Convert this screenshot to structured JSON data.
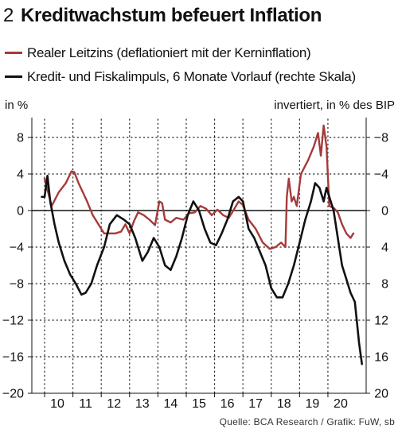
{
  "header": {
    "number": "2",
    "title": "Kreditwachstum befeuert Inflation"
  },
  "source": "Quelle: BCA Research / Grafik: FuW, sb",
  "chart_data": {
    "type": "line",
    "left_axis_label": "in %",
    "right_axis_label": "invertiert, in % des BIP",
    "left_ticks": [
      "8",
      "4",
      "0",
      "−4",
      "−8",
      "−12",
      "−16",
      "−20"
    ],
    "right_ticks": [
      "−8",
      "−4",
      "0",
      "4",
      "8",
      "12",
      "16",
      "20"
    ],
    "left_ylim": [
      -20,
      10
    ],
    "right_ylim_inverted": [
      -10,
      20
    ],
    "x_ticks": [
      "10",
      "11",
      "12",
      "13",
      "14",
      "15",
      "16",
      "17",
      "18",
      "19",
      "20"
    ],
    "xlim": [
      2009.55,
      2021.35
    ],
    "grid": "dotted",
    "colors": {
      "real_rate": "#a63a3a",
      "impulse": "#111111",
      "zero_line": "#111111"
    },
    "series": [
      {
        "name": "Realer Leitzins (deflationiert mit der Kerninflation)",
        "axis": "left",
        "color": "#a63a3a",
        "x": [
          2010.0,
          2010.25,
          2010.5,
          2010.75,
          2010.95,
          2011.05,
          2011.2,
          2011.35,
          2011.5,
          2011.7,
          2011.9,
          2012.1,
          2012.3,
          2012.5,
          2012.7,
          2012.85,
          2013.0,
          2013.15,
          2013.3,
          2013.5,
          2013.7,
          2013.9,
          2014.05,
          2014.15,
          2014.25,
          2014.45,
          2014.65,
          2014.9,
          2015.1,
          2015.3,
          2015.5,
          2015.7,
          2015.9,
          2016.1,
          2016.3,
          2016.5,
          2016.7,
          2016.85,
          2017.0,
          2017.2,
          2017.45,
          2017.7,
          2017.95,
          2018.15,
          2018.35,
          2018.5,
          2018.55,
          2018.62,
          2018.72,
          2018.8,
          2018.9,
          2019.05,
          2019.3,
          2019.5,
          2019.65,
          2019.75,
          2019.85,
          2019.95,
          2020.05,
          2020.2,
          2020.35,
          2020.5,
          2020.65,
          2020.8,
          2020.9
        ],
        "values": [
          3.5,
          0.5,
          2.0,
          3.0,
          4.3,
          4.2,
          3.0,
          2.0,
          1.0,
          -0.5,
          -1.5,
          -2.5,
          -2.5,
          -2.5,
          -2.3,
          -1.5,
          -2.5,
          -1.2,
          -0.2,
          -0.5,
          -1.0,
          -1.6,
          1.0,
          0.8,
          -1.0,
          -1.3,
          -0.8,
          -1.0,
          -0.3,
          -0.2,
          0.5,
          0.2,
          -0.5,
          0.1,
          -0.5,
          -0.8,
          0.2,
          1.0,
          0.6,
          -1.0,
          -2.0,
          -3.5,
          -4.2,
          -4.0,
          -3.5,
          -4.0,
          1.5,
          3.5,
          1.0,
          1.5,
          0.5,
          4.0,
          5.5,
          7.0,
          8.5,
          6.0,
          9.3,
          7.0,
          0.5,
          0.3,
          -0.2,
          -1.5,
          -2.5,
          -3.0,
          -2.5
        ]
      },
      {
        "name": "Kredit- und Fiskalimpuls, 6 Monate Vorlauf (rechte Skala)",
        "axis": "right",
        "color": "#111111",
        "x": [
          2009.9,
          2010.0,
          2010.1,
          2010.2,
          2010.35,
          2010.5,
          2010.7,
          2010.9,
          2011.1,
          2011.3,
          2011.45,
          2011.65,
          2011.85,
          2012.1,
          2012.3,
          2012.55,
          2012.8,
          2013.0,
          2013.2,
          2013.45,
          2013.65,
          2013.85,
          2014.05,
          2014.25,
          2014.45,
          2014.65,
          2014.85,
          2015.05,
          2015.25,
          2015.45,
          2015.65,
          2015.85,
          2016.05,
          2016.25,
          2016.45,
          2016.65,
          2016.85,
          2017.0,
          2017.2,
          2017.4,
          2017.6,
          2017.8,
          2018.0,
          2018.2,
          2018.4,
          2018.6,
          2018.8,
          2019.0,
          2019.2,
          2019.4,
          2019.55,
          2019.7,
          2019.85,
          2019.95,
          2020.05,
          2020.2,
          2020.35,
          2020.5,
          2020.65,
          2020.8,
          2020.95,
          2021.1,
          2021.2
        ],
        "values": [
          -1.5,
          -1.5,
          -3.8,
          -1.0,
          1.5,
          3.5,
          5.5,
          7.0,
          8.0,
          9.2,
          9.0,
          8.0,
          6.0,
          4.0,
          1.5,
          0.5,
          1.0,
          1.5,
          3.0,
          5.5,
          4.5,
          3.0,
          4.0,
          6.0,
          6.5,
          5.0,
          3.0,
          0.5,
          -1.0,
          0.0,
          2.0,
          3.5,
          3.8,
          2.5,
          1.0,
          -1.0,
          -1.5,
          -1.0,
          2.0,
          3.0,
          4.5,
          6.0,
          8.5,
          9.5,
          9.5,
          8.0,
          6.0,
          3.5,
          1.0,
          -1.0,
          -3.0,
          -2.5,
          -1.0,
          -2.5,
          -1.5,
          0.0,
          3.0,
          6.0,
          7.5,
          9.0,
          10.0,
          14.5,
          16.8
        ]
      }
    ]
  }
}
